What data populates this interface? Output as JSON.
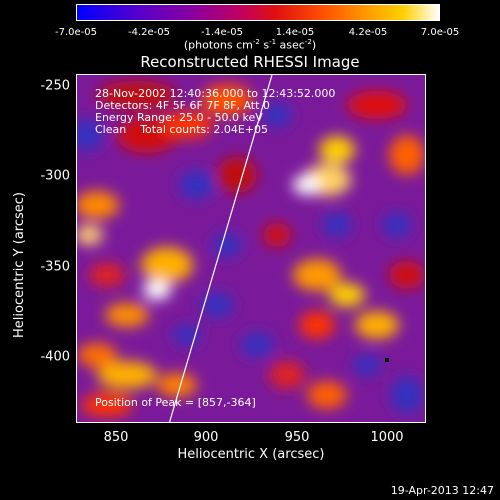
{
  "colorbar": {
    "ticks": [
      "-7.0e-05",
      "-4.2e-05",
      "-1.4e-05",
      "1.4e-05",
      "4.2e-05",
      "7.0e-05"
    ],
    "unit_prefix": "(photons cm",
    "unit_exp1": "-2",
    "unit_mid": " s",
    "unit_exp2": "-1",
    "unit_mid2": " asec",
    "unit_exp3": "-2",
    "unit_suffix": ")"
  },
  "title": "Reconstructed RHESSI Image",
  "annotations": {
    "time": "28-Nov-2002 12:40:36.000 to 12:43:52.000",
    "detectors": "Detectors: 4F 5F 6F 7F 8F, Att 0",
    "energy": "Energy Range: 25.0 - 50.0 keV",
    "clean": "Clean    Total counts: 2.04E+05",
    "peak": "Position of Peak = [857,-364]"
  },
  "axes": {
    "xlabel": "Heliocentric X (arcsec)",
    "ylabel": "Heliocentric Y (arcsec)",
    "xticks": [
      "850",
      "900",
      "950",
      "1000"
    ],
    "yticks": [
      "-250",
      "-300",
      "-350",
      "-400"
    ]
  },
  "timestamp": "19-Apr-2013 12:47"
}
